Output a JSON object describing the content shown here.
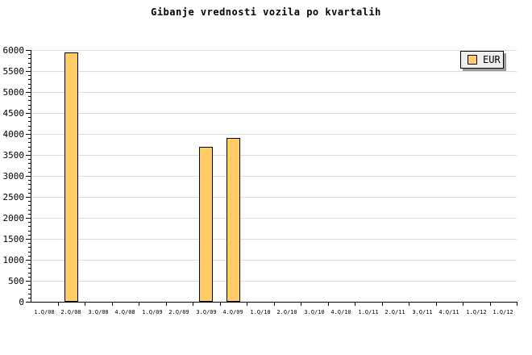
{
  "title": "Gibanje vrednosti vozila po kvartalih",
  "legend": {
    "label": "EUR",
    "position": "top-right"
  },
  "colors": {
    "background": "#FFFFFF",
    "bar_fill": "#FFCC66",
    "bar_border": "#000000",
    "gridline": "#DCDCDC",
    "axis": "#000000",
    "text": "#000000",
    "legend_bg": "#EEEEEE",
    "legend_shadow": "#999999"
  },
  "chart_data": {
    "type": "bar",
    "title": "Gibanje vrednosti vozila po kvartalih",
    "xlabel": "",
    "ylabel": "",
    "categories": [
      "1.Q/08",
      "2.Q/08",
      "3.Q/08",
      "4.Q/08",
      "1.Q/09",
      "2.Q/09",
      "3.Q/09",
      "4.Q/09",
      "1.Q/10",
      "2.Q/10",
      "3.Q/10",
      "4.Q/10",
      "1.Q/11",
      "2.Q/11",
      "3.Q/11",
      "4.Q/11",
      "1.Q/12",
      "1.Q/12"
    ],
    "series": [
      {
        "name": "EUR",
        "values": [
          null,
          5950,
          null,
          null,
          null,
          null,
          3700,
          3900,
          null,
          null,
          null,
          null,
          null,
          null,
          null,
          null,
          null,
          null
        ]
      }
    ],
    "ylim": [
      0,
      6000
    ],
    "y_major_step": 500,
    "y_minor_step": 100,
    "y_tick_labels": [
      "0",
      "500",
      "1000",
      "1500",
      "2000",
      "2500",
      "3000",
      "3500",
      "4000",
      "4500",
      "5000",
      "5500",
      "6000"
    ],
    "grid": "horizontal-major",
    "legend_position": "top-right"
  }
}
